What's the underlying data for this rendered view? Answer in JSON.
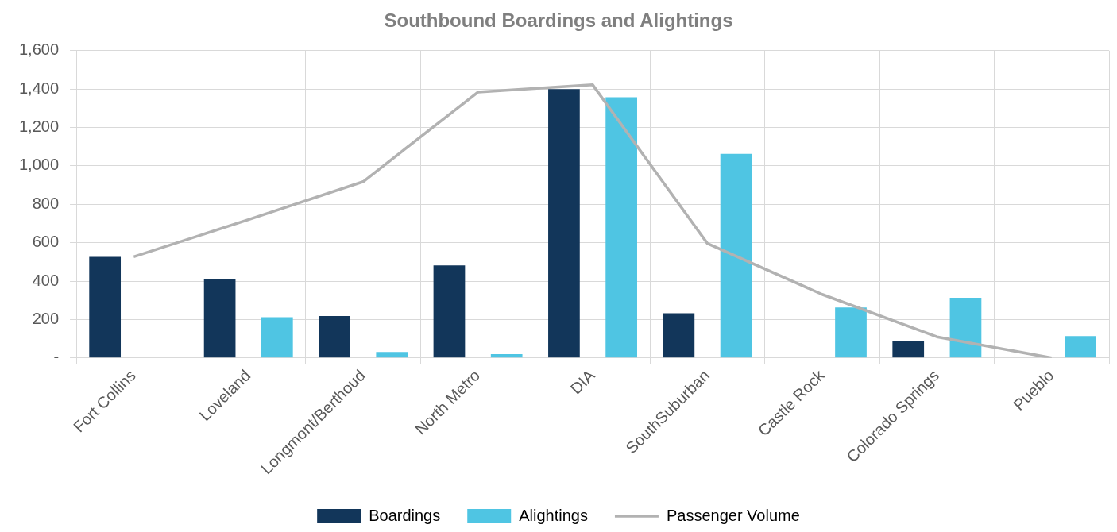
{
  "chart_data": {
    "type": "bar",
    "title": "Southbound Boardings and Alightings",
    "categories": [
      "Fort Collins",
      "Loveland",
      "Longmont/Berthoud",
      "North Metro",
      "DIA",
      "SouthSuburban",
      "Castle Rock",
      "Colorado Springs",
      "Pueblo"
    ],
    "series": [
      {
        "name": "Boardings",
        "color": "#12365a",
        "values": [
          526,
          412,
          218,
          482,
          1400,
          233,
          null,
          90,
          null
        ]
      },
      {
        "name": "Alightings",
        "color": "#4fc5e3",
        "values": [
          null,
          212,
          31,
          20,
          1357,
          1063,
          263,
          313,
          114
        ]
      },
      {
        "name": "Passenger Volume",
        "type": "line",
        "color": "#b2b2b2",
        "values": [
          527,
          720,
          918,
          1384,
          1422,
          596,
          331,
          110,
          0
        ]
      }
    ],
    "ylim": [
      0,
      1600
    ],
    "yticks": [
      {
        "value": 0,
        "label": "-"
      },
      {
        "value": 200,
        "label": "200"
      },
      {
        "value": 400,
        "label": "400"
      },
      {
        "value": 600,
        "label": "600"
      },
      {
        "value": 800,
        "label": "800"
      },
      {
        "value": 1000,
        "label": "1,000"
      },
      {
        "value": 1200,
        "label": "1,200"
      },
      {
        "value": 1400,
        "label": "1,400"
      },
      {
        "value": 1600,
        "label": "1,600"
      }
    ],
    "grid": true,
    "legend": "bottom",
    "marker": "none"
  }
}
